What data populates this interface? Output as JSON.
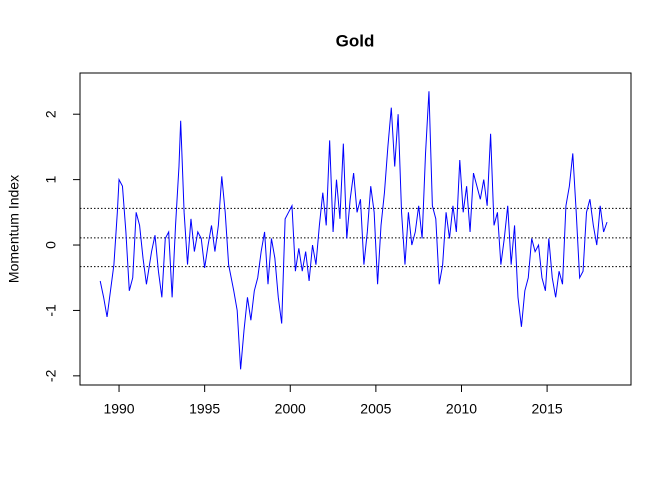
{
  "chart_data": {
    "type": "line",
    "title": "Gold",
    "y_label": "Momentum Index",
    "x": [
      1988.9,
      1989.1,
      1989.3,
      1989.5,
      1989.7,
      1989.9,
      1990.0,
      1990.2,
      1990.4,
      1990.6,
      1990.8,
      1991.0,
      1991.2,
      1991.4,
      1991.6,
      1991.9,
      1992.1,
      1992.3,
      1992.5,
      1992.7,
      1992.9,
      1993.1,
      1993.3,
      1993.5,
      1993.6,
      1993.8,
      1994.0,
      1994.2,
      1994.4,
      1994.6,
      1994.8,
      1995.0,
      1995.2,
      1995.4,
      1995.6,
      1995.8,
      1996.0,
      1996.2,
      1996.4,
      1996.7,
      1996.9,
      1997.1,
      1997.3,
      1997.5,
      1997.7,
      1997.9,
      1998.1,
      1998.3,
      1998.5,
      1998.7,
      1998.9,
      1999.1,
      1999.3,
      1999.5,
      1999.7,
      1999.9,
      2000.1,
      2000.3,
      2000.5,
      2000.7,
      2000.9,
      2001.1,
      2001.3,
      2001.5,
      2001.7,
      2001.9,
      2002.1,
      2002.3,
      2002.5,
      2002.7,
      2002.9,
      2003.1,
      2003.3,
      2003.5,
      2003.7,
      2003.9,
      2004.1,
      2004.3,
      2004.5,
      2004.7,
      2004.9,
      2005.1,
      2005.3,
      2005.5,
      2005.7,
      2005.9,
      2006.1,
      2006.3,
      2006.5,
      2006.7,
      2006.9,
      2007.1,
      2007.3,
      2007.5,
      2007.7,
      2007.9,
      2008.1,
      2008.3,
      2008.5,
      2008.7,
      2008.9,
      2009.1,
      2009.3,
      2009.5,
      2009.7,
      2009.9,
      2010.1,
      2010.3,
      2010.5,
      2010.7,
      2010.9,
      2011.1,
      2011.3,
      2011.5,
      2011.7,
      2011.9,
      2012.1,
      2012.3,
      2012.5,
      2012.7,
      2012.9,
      2013.1,
      2013.3,
      2013.5,
      2013.7,
      2013.9,
      2014.1,
      2014.3,
      2014.5,
      2014.7,
      2014.9,
      2015.1,
      2015.3,
      2015.5,
      2015.7,
      2015.9,
      2016.1,
      2016.3,
      2016.5,
      2016.7,
      2016.9,
      2017.1,
      2017.3,
      2017.5,
      2017.7,
      2017.9,
      2018.1,
      2018.3,
      2018.5
    ],
    "values": [
      -0.55,
      -0.8,
      -1.1,
      -0.7,
      -0.3,
      0.5,
      1.0,
      0.9,
      0.2,
      -0.7,
      -0.5,
      0.5,
      0.3,
      -0.2,
      -0.6,
      -0.1,
      0.15,
      -0.4,
      -0.8,
      0.1,
      0.2,
      -0.8,
      0.3,
      1.2,
      1.9,
      0.5,
      -0.3,
      0.4,
      -0.1,
      0.2,
      0.1,
      -0.35,
      0.0,
      0.3,
      -0.1,
      0.3,
      1.05,
      0.5,
      -0.3,
      -0.7,
      -1.0,
      -1.9,
      -1.3,
      -0.8,
      -1.15,
      -0.7,
      -0.5,
      -0.1,
      0.2,
      -0.6,
      0.1,
      -0.2,
      -0.8,
      -1.2,
      0.4,
      0.5,
      0.6,
      -0.4,
      -0.05,
      -0.4,
      -0.1,
      -0.55,
      0.0,
      -0.3,
      0.3,
      0.8,
      0.3,
      1.6,
      0.2,
      1.0,
      0.4,
      1.55,
      0.1,
      0.7,
      1.1,
      0.5,
      0.7,
      -0.3,
      0.2,
      0.9,
      0.5,
      -0.6,
      0.3,
      0.8,
      1.5,
      2.1,
      1.2,
      2.0,
      0.5,
      -0.3,
      0.5,
      0.0,
      0.2,
      0.6,
      0.1,
      1.4,
      2.35,
      0.6,
      0.4,
      -0.6,
      -0.3,
      0.5,
      0.1,
      0.6,
      0.2,
      1.3,
      0.5,
      0.9,
      0.2,
      1.1,
      0.9,
      0.7,
      1.0,
      0.6,
      1.7,
      0.3,
      0.5,
      -0.3,
      0.1,
      0.6,
      -0.3,
      0.3,
      -0.8,
      -1.25,
      -0.7,
      -0.5,
      0.1,
      -0.1,
      0.0,
      -0.5,
      -0.7,
      0.1,
      -0.5,
      -0.8,
      -0.4,
      -0.6,
      0.6,
      0.9,
      1.4,
      0.5,
      -0.5,
      -0.4,
      0.5,
      0.7,
      0.3,
      0.0,
      0.6,
      0.2,
      0.35
    ],
    "color": "#0000ff",
    "hlines": [
      0.56,
      0.11,
      -0.33
    ],
    "xlim": [
      1987.72,
      2019.9
    ],
    "xticks": [
      1990,
      1995,
      2000,
      2005,
      2010,
      2015
    ],
    "ylim": [
      -2.14,
      2.63
    ],
    "yticks": [
      -2,
      -1,
      0,
      1,
      2
    ]
  }
}
